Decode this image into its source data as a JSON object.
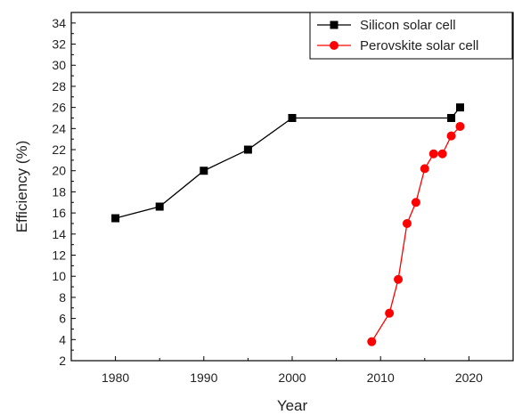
{
  "chart_data": {
    "type": "line",
    "xlabel": "Year",
    "ylabel": "Efficiency (%)",
    "xlim": [
      1975,
      2025
    ],
    "ylim": [
      2,
      35
    ],
    "x_ticks": [
      1980,
      1990,
      2000,
      2010,
      2020
    ],
    "y_ticks": [
      2,
      4,
      6,
      8,
      10,
      12,
      14,
      16,
      18,
      20,
      22,
      24,
      26,
      28,
      30,
      32,
      34
    ],
    "grid": false,
    "legend_position": "top-right",
    "series": [
      {
        "name": "Silicon solar cell",
        "color": "#000000",
        "marker": "square",
        "x": [
          1980,
          1985,
          1990,
          1995,
          2000,
          2018,
          2019
        ],
        "y": [
          15.5,
          16.6,
          20.0,
          22.0,
          25.0,
          25.0,
          26.0
        ]
      },
      {
        "name": "Perovskite solar cell",
        "color": "#ff0000",
        "marker": "circle",
        "x": [
          2009,
          2011,
          2012,
          2013,
          2014,
          2015,
          2016,
          2017,
          2018,
          2019
        ],
        "y": [
          3.8,
          6.5,
          9.7,
          15.0,
          17.0,
          20.2,
          21.6,
          21.6,
          23.3,
          24.2
        ]
      }
    ]
  }
}
